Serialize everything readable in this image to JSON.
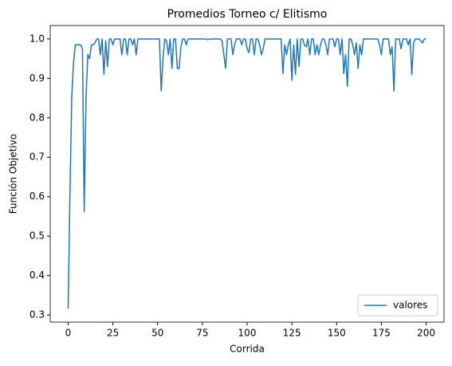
{
  "chart_data": {
    "type": "line",
    "title": "Promedios Torneo c/ Elitismo",
    "xlabel": "Corrida",
    "ylabel": "Función Objetivo",
    "x": [
      0,
      1,
      2,
      3,
      4,
      5,
      6,
      7,
      8,
      9,
      10,
      11,
      12,
      13,
      14,
      15,
      16,
      17,
      18,
      19,
      20,
      21,
      22,
      23,
      24,
      25,
      26,
      27,
      28,
      29,
      30,
      31,
      32,
      33,
      34,
      35,
      36,
      37,
      38,
      39,
      40,
      41,
      42,
      43,
      44,
      45,
      46,
      47,
      48,
      49,
      50,
      51,
      52,
      53,
      54,
      55,
      56,
      57,
      58,
      59,
      60,
      61,
      62,
      63,
      64,
      65,
      66,
      67,
      68,
      69,
      70,
      71,
      72,
      73,
      74,
      75,
      76,
      77,
      78,
      79,
      80,
      81,
      82,
      83,
      84,
      85,
      86,
      87,
      88,
      89,
      90,
      91,
      92,
      93,
      94,
      95,
      96,
      97,
      98,
      99,
      100,
      101,
      102,
      103,
      104,
      105,
      106,
      107,
      108,
      109,
      110,
      111,
      112,
      113,
      114,
      115,
      116,
      117,
      118,
      119,
      120,
      121,
      122,
      123,
      124,
      125,
      126,
      127,
      128,
      129,
      130,
      131,
      132,
      133,
      134,
      135,
      136,
      137,
      138,
      139,
      140,
      141,
      142,
      143,
      144,
      145,
      146,
      147,
      148,
      149,
      150,
      151,
      152,
      153,
      154,
      155,
      156,
      157,
      158,
      159,
      160,
      161,
      162,
      163,
      164,
      165,
      166,
      167,
      168,
      169,
      170,
      171,
      172,
      173,
      174,
      175,
      176,
      177,
      178,
      179,
      180,
      181,
      182,
      183,
      184,
      185,
      186,
      187,
      188,
      189,
      190,
      191,
      192,
      193,
      194,
      195,
      196,
      197,
      198,
      199,
      200
    ],
    "series": [
      {
        "name": "valores",
        "color": "#1f77b4",
        "values": [
          0.316,
          0.6,
          0.85,
          0.94,
          0.985,
          0.985,
          0.985,
          0.985,
          0.975,
          0.562,
          0.85,
          0.96,
          0.95,
          0.985,
          0.985,
          0.99,
          1.0,
          1.0,
          0.96,
          1.0,
          0.91,
          0.995,
          0.93,
          1.0,
          1.0,
          0.985,
          1.0,
          1.0,
          1.0,
          1.0,
          0.96,
          1.0,
          1.0,
          0.96,
          1.0,
          1.0,
          0.985,
          1.0,
          0.96,
          1.0,
          1.0,
          1.0,
          1.0,
          1.0,
          1.0,
          1.0,
          1.0,
          1.0,
          1.0,
          1.0,
          1.0,
          1.0,
          0.868,
          0.95,
          1.0,
          0.995,
          0.96,
          1.0,
          0.925,
          1.0,
          1.0,
          0.925,
          0.925,
          0.98,
          1.0,
          1.0,
          0.985,
          1.0,
          1.0,
          1.0,
          1.0,
          1.0,
          1.0,
          1.0,
          1.0,
          1.0,
          1.0,
          1.0,
          0.998,
          1.0,
          1.0,
          1.0,
          1.0,
          1.0,
          1.0,
          1.0,
          0.995,
          0.96,
          0.925,
          1.0,
          1.0,
          1.0,
          0.96,
          0.985,
          1.0,
          1.0,
          1.0,
          0.985,
          1.0,
          1.0,
          0.975,
          0.965,
          1.0,
          1.0,
          0.96,
          1.0,
          1.0,
          0.985,
          0.96,
          0.975,
          1.0,
          1.0,
          1.0,
          1.0,
          1.0,
          1.0,
          1.0,
          1.0,
          1.0,
          1.0,
          0.912,
          0.985,
          0.96,
          0.985,
          1.0,
          0.895,
          0.985,
          0.91,
          1.0,
          0.93,
          1.0,
          1.0,
          0.985,
          0.98,
          1.0,
          0.96,
          1.0,
          1.0,
          0.96,
          0.985,
          0.96,
          0.985,
          1.0,
          1.0,
          0.985,
          0.96,
          1.0,
          1.0,
          1.0,
          0.98,
          1.0,
          1.0,
          0.96,
          1.0,
          0.912,
          0.96,
          0.88,
          1.0,
          1.0,
          0.985,
          0.96,
          0.99,
          0.925,
          0.985,
          0.96,
          1.0,
          1.0,
          1.0,
          1.0,
          1.0,
          1.0,
          1.0,
          1.0,
          1.0,
          0.985,
          0.96,
          1.0,
          1.0,
          1.0,
          1.0,
          0.96,
          0.98,
          0.868,
          1.0,
          1.0,
          1.0,
          0.975,
          1.0,
          1.0,
          1.0,
          0.985,
          1.0,
          0.91,
          0.99,
          1.0,
          1.0,
          1.0,
          0.995,
          0.99,
          1.0,
          1.0
        ]
      }
    ],
    "xlim": [
      -10,
      210
    ],
    "xticks": [
      0,
      25,
      50,
      75,
      100,
      125,
      150,
      175,
      200
    ],
    "ylim": [
      0.282,
      1.034
    ],
    "yticks": [
      0.3,
      0.4,
      0.5,
      0.6,
      0.7,
      0.8,
      0.9,
      {
        "value": 1,
        "label": "1.0"
      }
    ],
    "grid": false,
    "legend": "lower right"
  }
}
